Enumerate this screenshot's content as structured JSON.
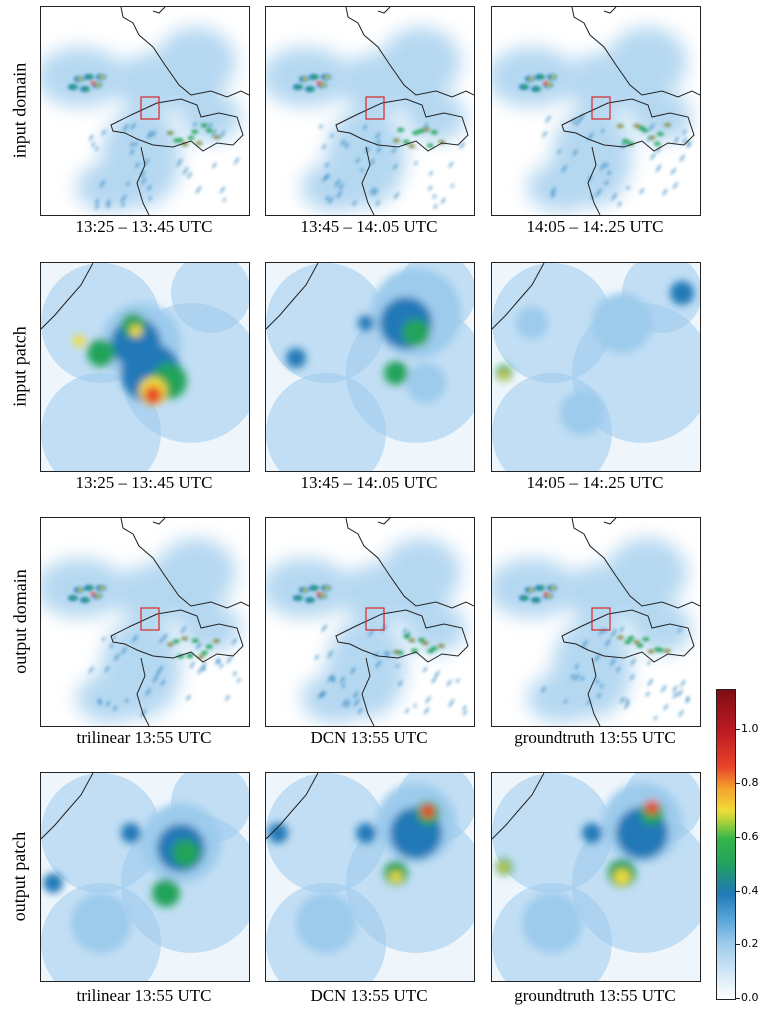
{
  "rows": [
    {
      "label": "input domain"
    },
    {
      "label": "input patch"
    },
    {
      "label": "output domain"
    },
    {
      "label": "output patch"
    }
  ],
  "captions": {
    "r1": [
      "13:25 – 13:.45 UTC",
      "13:45 – 14:.05 UTC",
      "14:05 – 14:.25 UTC"
    ],
    "r2": [
      "13:25 – 13:.45 UTC",
      "13:45 – 14:.05 UTC",
      "14:05 – 14:.25 UTC"
    ],
    "r3": [
      "trilinear 13:55 UTC",
      "DCN 13:55 UTC",
      "groundtruth 13:55 UTC"
    ],
    "r4": [
      "trilinear 13:55 UTC",
      "DCN 13:55 UTC",
      "groundtruth 13:55 UTC"
    ]
  },
  "colorbar": {
    "ticks": [
      "0.0",
      "0.2",
      "0.4",
      "0.6",
      "0.8",
      "1.0"
    ],
    "range": [
      0.0,
      1.15
    ],
    "colors": [
      "#ffffff",
      "#9ccbec",
      "#2279b7",
      "#23a35a",
      "#f0dc3a",
      "#e8452a",
      "#800d14"
    ]
  }
}
